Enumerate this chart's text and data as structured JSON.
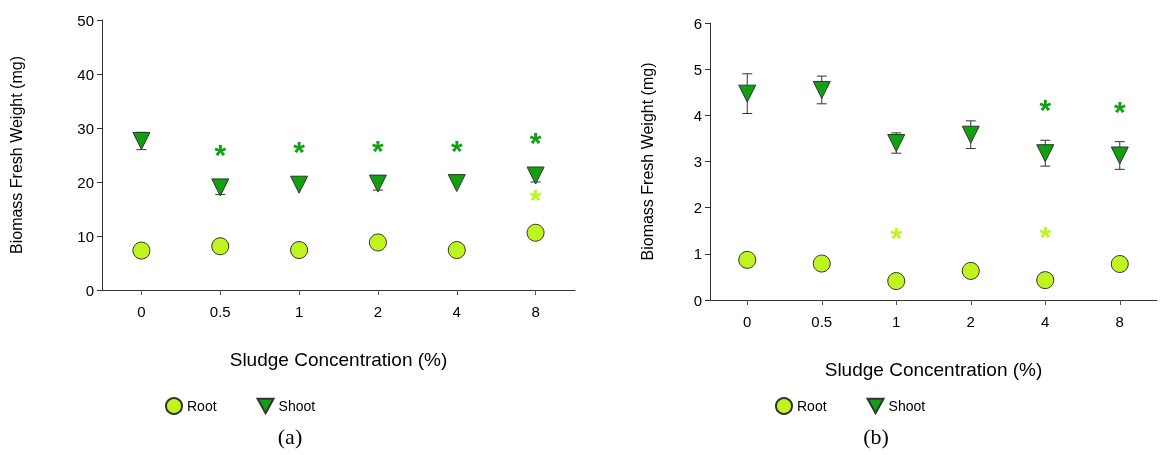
{
  "chart_data": [
    {
      "type": "scatter",
      "title": "(a)",
      "xlabel": "Sludge Concentration (%)",
      "ylabel": "Biomass Fresh Weight (mg)",
      "categories": [
        "0",
        "0.5",
        "1",
        "2",
        "4",
        "8"
      ],
      "series": [
        {
          "name": "Root",
          "color": "#bff51e",
          "marker": "circle",
          "values": [
            7.3,
            8.1,
            7.4,
            8.8,
            7.4,
            10.6
          ],
          "value_labels": [
            null,
            null,
            null,
            null,
            null,
            "*"
          ]
        },
        {
          "name": "Shoot",
          "color": "#10a010",
          "marker": "triangle",
          "values": [
            27.6,
            19.0,
            19.5,
            19.7,
            19.8,
            21.2
          ],
          "errors": [
            1.6,
            1.3,
            null,
            1.2,
            null,
            1.2
          ],
          "value_labels": [
            null,
            "*",
            "*",
            "*",
            "*",
            "*"
          ]
        }
      ],
      "ylim": [
        0,
        50
      ],
      "yticks": [
        0,
        10,
        20,
        30,
        40,
        50
      ],
      "grid": false,
      "legend": "bottom"
    },
    {
      "type": "scatter",
      "title": "(b)",
      "xlabel": "Sludge Concentration (%)",
      "ylabel": "Biomass Fresh Weight (mg)",
      "categories": [
        "0",
        "0.5",
        "1",
        "2",
        "4",
        "8"
      ],
      "series": [
        {
          "name": "Root",
          "color": "#bff51e",
          "marker": "circle",
          "values": [
            0.87,
            0.79,
            0.41,
            0.63,
            0.43,
            0.78
          ],
          "value_labels": [
            null,
            null,
            "*",
            null,
            "*",
            null
          ]
        },
        {
          "name": "Shoot",
          "color": "#10a010",
          "marker": "triangle",
          "values": [
            4.47,
            4.55,
            3.4,
            3.58,
            3.18,
            3.13
          ],
          "errors": [
            0.43,
            0.3,
            0.22,
            0.3,
            0.28,
            0.3
          ],
          "value_labels": [
            null,
            null,
            null,
            null,
            "*",
            "*"
          ]
        }
      ],
      "ylim": [
        0,
        6
      ],
      "yticks": [
        0,
        1,
        2,
        3,
        4,
        5,
        6
      ],
      "grid": false,
      "legend": "bottom"
    }
  ]
}
